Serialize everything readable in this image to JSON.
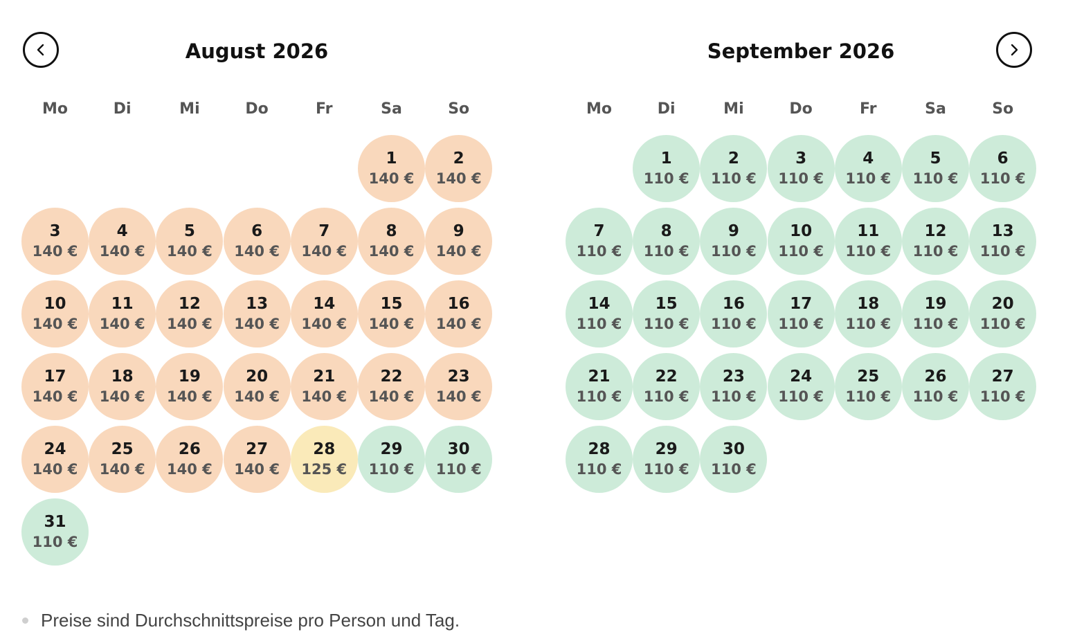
{
  "nav": {
    "prev_icon": "chevron-left-icon",
    "next_icon": "chevron-right-icon"
  },
  "colors": {
    "high": "#f9d8bc",
    "mid": "#faeab9",
    "low": "#cdebd9"
  },
  "weekdays": [
    "Mo",
    "Di",
    "Mi",
    "Do",
    "Fr",
    "Sa",
    "So"
  ],
  "months": [
    {
      "title": "August 2026",
      "start_weekday": 5,
      "days": [
        {
          "day": "1",
          "price": "140 €",
          "tier": "high"
        },
        {
          "day": "2",
          "price": "140 €",
          "tier": "high"
        },
        {
          "day": "3",
          "price": "140 €",
          "tier": "high"
        },
        {
          "day": "4",
          "price": "140 €",
          "tier": "high"
        },
        {
          "day": "5",
          "price": "140 €",
          "tier": "high"
        },
        {
          "day": "6",
          "price": "140 €",
          "tier": "high"
        },
        {
          "day": "7",
          "price": "140 €",
          "tier": "high"
        },
        {
          "day": "8",
          "price": "140 €",
          "tier": "high"
        },
        {
          "day": "9",
          "price": "140 €",
          "tier": "high"
        },
        {
          "day": "10",
          "price": "140 €",
          "tier": "high"
        },
        {
          "day": "11",
          "price": "140 €",
          "tier": "high"
        },
        {
          "day": "12",
          "price": "140 €",
          "tier": "high"
        },
        {
          "day": "13",
          "price": "140 €",
          "tier": "high"
        },
        {
          "day": "14",
          "price": "140 €",
          "tier": "high"
        },
        {
          "day": "15",
          "price": "140 €",
          "tier": "high"
        },
        {
          "day": "16",
          "price": "140 €",
          "tier": "high"
        },
        {
          "day": "17",
          "price": "140 €",
          "tier": "high"
        },
        {
          "day": "18",
          "price": "140 €",
          "tier": "high"
        },
        {
          "day": "19",
          "price": "140 €",
          "tier": "high"
        },
        {
          "day": "20",
          "price": "140 €",
          "tier": "high"
        },
        {
          "day": "21",
          "price": "140 €",
          "tier": "high"
        },
        {
          "day": "22",
          "price": "140 €",
          "tier": "high"
        },
        {
          "day": "23",
          "price": "140 €",
          "tier": "high"
        },
        {
          "day": "24",
          "price": "140 €",
          "tier": "high"
        },
        {
          "day": "25",
          "price": "140 €",
          "tier": "high"
        },
        {
          "day": "26",
          "price": "140 €",
          "tier": "high"
        },
        {
          "day": "27",
          "price": "140 €",
          "tier": "high"
        },
        {
          "day": "28",
          "price": "125 €",
          "tier": "mid"
        },
        {
          "day": "29",
          "price": "110 €",
          "tier": "low"
        },
        {
          "day": "30",
          "price": "110 €",
          "tier": "low"
        },
        {
          "day": "31",
          "price": "110 €",
          "tier": "low"
        }
      ]
    },
    {
      "title": "September 2026",
      "start_weekday": 1,
      "days": [
        {
          "day": "1",
          "price": "110 €",
          "tier": "low"
        },
        {
          "day": "2",
          "price": "110 €",
          "tier": "low"
        },
        {
          "day": "3",
          "price": "110 €",
          "tier": "low"
        },
        {
          "day": "4",
          "price": "110 €",
          "tier": "low"
        },
        {
          "day": "5",
          "price": "110 €",
          "tier": "low"
        },
        {
          "day": "6",
          "price": "110 €",
          "tier": "low"
        },
        {
          "day": "7",
          "price": "110 €",
          "tier": "low"
        },
        {
          "day": "8",
          "price": "110 €",
          "tier": "low"
        },
        {
          "day": "9",
          "price": "110 €",
          "tier": "low"
        },
        {
          "day": "10",
          "price": "110 €",
          "tier": "low"
        },
        {
          "day": "11",
          "price": "110 €",
          "tier": "low"
        },
        {
          "day": "12",
          "price": "110 €",
          "tier": "low"
        },
        {
          "day": "13",
          "price": "110 €",
          "tier": "low"
        },
        {
          "day": "14",
          "price": "110 €",
          "tier": "low"
        },
        {
          "day": "15",
          "price": "110 €",
          "tier": "low"
        },
        {
          "day": "16",
          "price": "110 €",
          "tier": "low"
        },
        {
          "day": "17",
          "price": "110 €",
          "tier": "low"
        },
        {
          "day": "18",
          "price": "110 €",
          "tier": "low"
        },
        {
          "day": "19",
          "price": "110 €",
          "tier": "low"
        },
        {
          "day": "20",
          "price": "110 €",
          "tier": "low"
        },
        {
          "day": "21",
          "price": "110 €",
          "tier": "low"
        },
        {
          "day": "22",
          "price": "110 €",
          "tier": "low"
        },
        {
          "day": "23",
          "price": "110 €",
          "tier": "low"
        },
        {
          "day": "24",
          "price": "110 €",
          "tier": "low"
        },
        {
          "day": "25",
          "price": "110 €",
          "tier": "low"
        },
        {
          "day": "26",
          "price": "110 €",
          "tier": "low"
        },
        {
          "day": "27",
          "price": "110 €",
          "tier": "low"
        },
        {
          "day": "28",
          "price": "110 €",
          "tier": "low"
        },
        {
          "day": "29",
          "price": "110 €",
          "tier": "low"
        },
        {
          "day": "30",
          "price": "110 €",
          "tier": "low"
        }
      ]
    }
  ],
  "footnote": "Preise sind Durchschnittspreise pro Person und Tag."
}
